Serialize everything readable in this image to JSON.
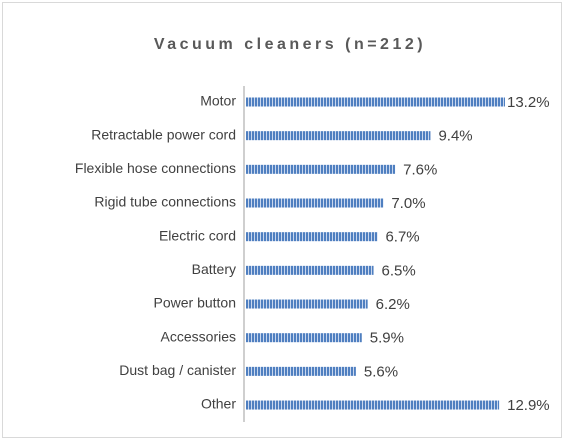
{
  "chart_data": {
    "type": "bar",
    "orientation": "horizontal",
    "title": "Vacuum cleaners (n=212)",
    "categories": [
      "Motor",
      "Retractable power cord",
      "Flexible hose connections",
      "Rigid tube connections",
      "Electric cord",
      "Battery",
      "Power button",
      "Accessories",
      "Dust bag / canister",
      "Other"
    ],
    "values": [
      13.2,
      9.4,
      7.6,
      7.0,
      6.7,
      6.5,
      6.2,
      5.9,
      5.6,
      12.9
    ],
    "value_labels": [
      "13.2%",
      "9.4%",
      "7.6%",
      "7.0%",
      "6.7%",
      "6.5%",
      "6.2%",
      "5.9%",
      "5.6%",
      "12.9%"
    ],
    "color": "#4f7fc0"
  }
}
